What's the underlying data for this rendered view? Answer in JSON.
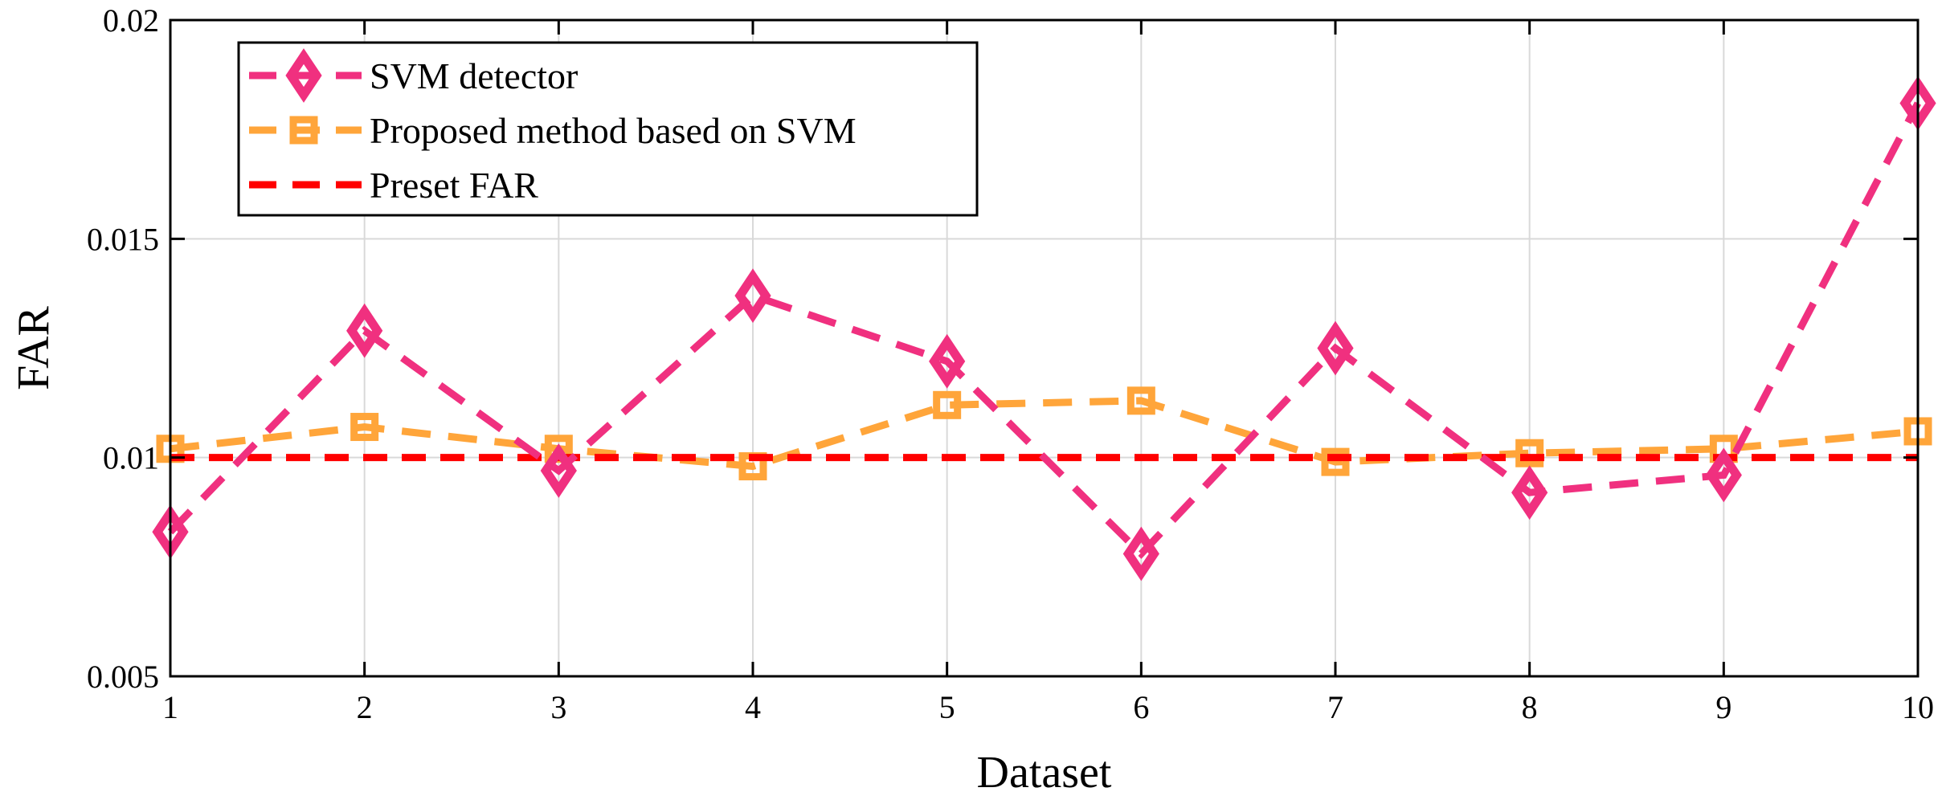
{
  "chart_data": {
    "type": "line",
    "title": "",
    "xlabel": "Dataset",
    "ylabel": "FAR",
    "xlim": [
      1,
      10
    ],
    "ylim": [
      0.005,
      0.02
    ],
    "x": [
      1,
      2,
      3,
      4,
      5,
      6,
      7,
      8,
      9,
      10
    ],
    "x_tick_labels": [
      "1",
      "2",
      "3",
      "4",
      "5",
      "6",
      "7",
      "8",
      "9",
      "10"
    ],
    "y_ticks": [
      0.005,
      0.01,
      0.015,
      0.02
    ],
    "y_tick_labels": [
      "0.005",
      "0.01",
      "0.015",
      "0.02"
    ],
    "grid": true,
    "legend_position": "top-left",
    "series": [
      {
        "name": "SVM detector",
        "color": "#f0307f",
        "marker": "diamond",
        "line_style": "dashed",
        "values": [
          0.0083,
          0.0129,
          0.0097,
          0.0137,
          0.0122,
          0.0078,
          0.0125,
          0.0092,
          0.0096,
          0.0181
        ]
      },
      {
        "name": "Proposed method based on SVM",
        "color": "#ffa53a",
        "marker": "square",
        "line_style": "dashed",
        "values": [
          0.0102,
          0.0107,
          0.0102,
          0.0098,
          0.0112,
          0.0113,
          0.0099,
          0.0101,
          0.0102,
          0.0106
        ]
      },
      {
        "name": "Preset FAR",
        "color": "#ff0000",
        "marker": "none",
        "line_style": "dashed",
        "values": [
          0.01,
          0.01,
          0.01,
          0.01,
          0.01,
          0.01,
          0.01,
          0.01,
          0.01,
          0.01
        ]
      }
    ]
  }
}
